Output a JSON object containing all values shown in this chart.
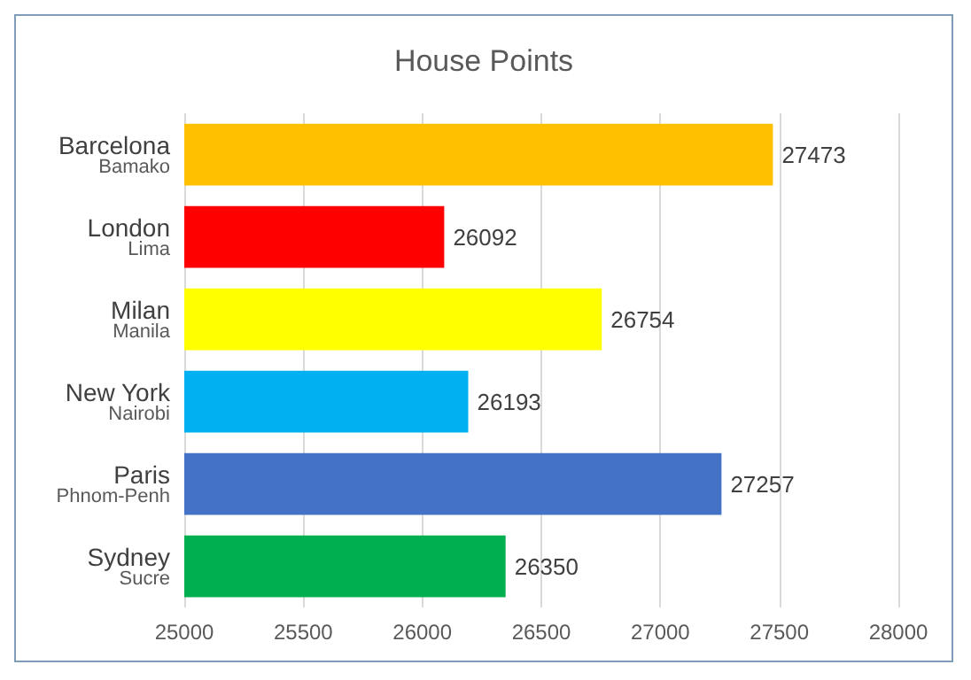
{
  "chart_data": {
    "type": "bar",
    "orientation": "horizontal",
    "title": "House Points",
    "categories": [
      "Barcelona\nBamako",
      "London\nLima",
      "Milan\nManila",
      "New York\nNairobi",
      "Paris\nPhnom-Penh",
      "Sydney\nSucre"
    ],
    "values": [
      27473,
      26092,
      26754,
      26193,
      27257,
      26350
    ],
    "colors": [
      "#ffc000",
      "#ff0000",
      "#ffff00",
      "#00b0f0",
      "#4472c4",
      "#00b050"
    ],
    "xlim": [
      25000,
      28000
    ],
    "xticks": [
      25000,
      25500,
      26000,
      26500,
      27000,
      27500,
      28000
    ],
    "grid": "x",
    "data_labels": true
  }
}
